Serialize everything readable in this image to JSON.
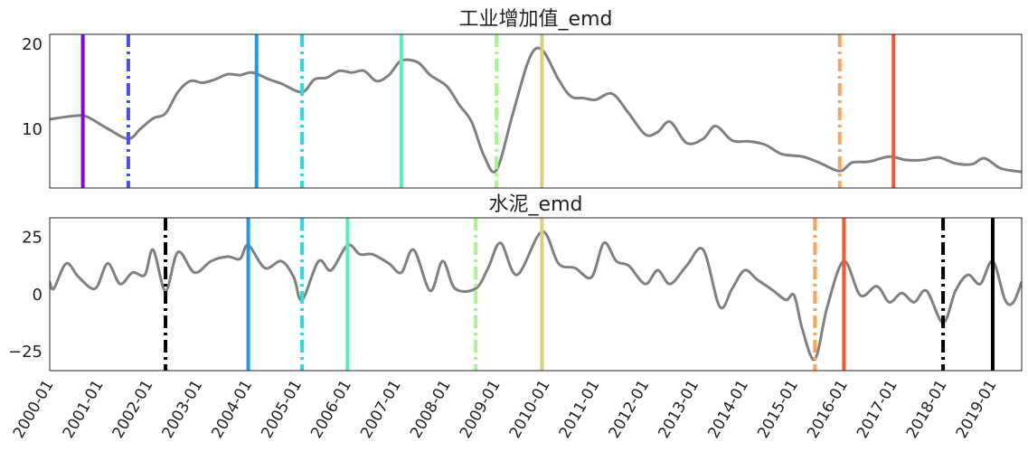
{
  "chart_data": [
    {
      "type": "line",
      "title": "工业增加值_emd",
      "color": "#808080",
      "x": [
        "2000-01",
        "2000-07",
        "2000-10",
        "2001-03",
        "2001-08",
        "2001-11",
        "2002-02",
        "2002-05",
        "2002-08",
        "2002-11",
        "2003-02",
        "2003-05",
        "2003-08",
        "2003-11",
        "2004-02",
        "2004-06",
        "2004-09",
        "2005-02",
        "2005-05",
        "2005-08",
        "2005-11",
        "2006-02",
        "2006-05",
        "2006-08",
        "2006-11",
        "2007-02",
        "2007-06",
        "2007-09",
        "2008-01",
        "2008-04",
        "2008-07",
        "2008-10",
        "2009-01",
        "2009-05",
        "2009-09",
        "2009-12",
        "2010-04",
        "2010-07",
        "2010-10",
        "2011-01",
        "2011-05",
        "2011-09",
        "2012-01",
        "2012-04",
        "2012-07",
        "2012-11",
        "2013-03",
        "2013-06",
        "2013-10",
        "2014-02",
        "2014-06",
        "2014-10",
        "2015-03",
        "2015-07",
        "2015-12",
        "2016-03",
        "2016-07",
        "2016-12",
        "2017-04",
        "2017-08",
        "2017-12",
        "2018-04",
        "2018-08",
        "2018-11",
        "2019-03",
        "2019-08"
      ],
      "values": [
        11.3,
        11.7,
        11.6,
        10.2,
        9.0,
        10.2,
        11.4,
        12.0,
        14.5,
        15.8,
        15.6,
        16.0,
        16.6,
        16.5,
        16.8,
        16.0,
        15.5,
        14.5,
        16.0,
        16.2,
        17.0,
        16.8,
        17.0,
        15.8,
        16.5,
        18.2,
        18.0,
        16.5,
        15.2,
        13.0,
        11.0,
        7.0,
        5.3,
        12.0,
        18.5,
        19.5,
        16.0,
        14.0,
        13.8,
        13.6,
        14.3,
        12.0,
        9.5,
        9.8,
        11.0,
        8.5,
        9.0,
        10.5,
        8.8,
        8.7,
        8.3,
        7.2,
        6.9,
        6.2,
        5.2,
        6.2,
        6.3,
        6.9,
        6.5,
        6.5,
        6.8,
        6.1,
        6.0,
        6.7,
        5.5,
        5.1
      ],
      "xlim": [
        "2000-01",
        "2019-08"
      ],
      "ylim": [
        3.2,
        21.3
      ],
      "yticks": [
        10,
        20
      ],
      "vlines": [
        {
          "x": "2000-09",
          "color": "#7f00ff",
          "style": "solid"
        },
        {
          "x": "2001-08",
          "color": "#4a4aff",
          "style": "dashdot"
        },
        {
          "x": "2004-03",
          "color": "#1e9be6",
          "style": "solid"
        },
        {
          "x": "2005-02",
          "color": "#2adcdc",
          "style": "dashdot"
        },
        {
          "x": "2007-02",
          "color": "#56f0b4",
          "style": "solid"
        },
        {
          "x": "2009-01",
          "color": "#a6f58e",
          "style": "dashdot"
        },
        {
          "x": "2009-12",
          "color": "#d4d27c",
          "style": "solid"
        },
        {
          "x": "2015-12",
          "color": "#ffa25a",
          "style": "dashdot"
        },
        {
          "x": "2017-01",
          "color": "#ff5630",
          "style": "solid"
        }
      ]
    },
    {
      "type": "line",
      "title": "水泥_emd",
      "color": "#808080",
      "x": [
        "2000-01",
        "2000-02",
        "2000-05",
        "2000-08",
        "2000-12",
        "2001-03",
        "2001-06",
        "2001-09",
        "2001-12",
        "2002-02",
        "2002-05",
        "2002-08",
        "2002-12",
        "2003-04",
        "2003-08",
        "2003-11",
        "2004-01",
        "2004-05",
        "2004-09",
        "2004-12",
        "2005-02",
        "2005-06",
        "2005-09",
        "2006-01",
        "2006-04",
        "2006-07",
        "2006-11",
        "2007-02",
        "2007-05",
        "2007-09",
        "2007-12",
        "2008-03",
        "2008-08",
        "2008-11",
        "2009-02",
        "2009-06",
        "2009-12",
        "2010-04",
        "2010-08",
        "2010-12",
        "2011-03",
        "2011-06",
        "2011-09",
        "2012-01",
        "2012-04",
        "2012-07",
        "2012-11",
        "2013-03",
        "2013-07",
        "2013-10",
        "2014-01",
        "2014-04",
        "2014-08",
        "2014-11",
        "2015-01",
        "2015-03",
        "2015-06",
        "2015-09",
        "2016-01",
        "2016-05",
        "2016-09",
        "2016-12",
        "2017-03",
        "2017-06",
        "2017-09",
        "2018-01",
        "2018-04",
        "2018-07",
        "2018-10",
        "2019-01",
        "2019-04",
        "2019-06",
        "2019-08"
      ],
      "values": [
        6,
        3,
        14,
        8,
        3,
        14,
        5,
        10,
        9,
        20,
        2,
        19,
        10,
        15,
        17,
        16,
        22,
        12,
        15,
        8,
        -2,
        15,
        11,
        22,
        18,
        18,
        14,
        10,
        20,
        2,
        15,
        3,
        3,
        12,
        23,
        9,
        28,
        14,
        12,
        8,
        23,
        15,
        13,
        5,
        11,
        5,
        13,
        20,
        -5,
        3,
        11,
        7,
        2,
        -2,
        0,
        -15,
        -28,
        -5,
        15,
        0,
        4,
        -3,
        1,
        -3,
        2,
        -12,
        2,
        9,
        5,
        15,
        -2,
        -3,
        6
      ],
      "xlim": [
        "2000-01",
        "2019-08"
      ],
      "ylim": [
        -33,
        34
      ],
      "yticks": [
        {
          "value": -25,
          "label": "−25"
        },
        0,
        25
      ],
      "xticks": [
        "2000-01",
        "2001-01",
        "2002-01",
        "2003-01",
        "2004-01",
        "2005-01",
        "2006-01",
        "2007-01",
        "2008-01",
        "2009-01",
        "2010-01",
        "2011-01",
        "2012-01",
        "2013-01",
        "2014-01",
        "2015-01",
        "2016-01",
        "2017-01",
        "2018-01",
        "2019-01"
      ],
      "vlines": [
        {
          "x": "2002-05",
          "color": "#000000",
          "style": "dashdot"
        },
        {
          "x": "2004-01",
          "color": "#1e9be6",
          "style": "solid"
        },
        {
          "x": "2005-02",
          "color": "#2adcdc",
          "style": "dashdot"
        },
        {
          "x": "2006-01",
          "color": "#56f0b4",
          "style": "solid"
        },
        {
          "x": "2008-08",
          "color": "#a6f58e",
          "style": "dashdot"
        },
        {
          "x": "2009-12",
          "color": "#d4d27c",
          "style": "solid"
        },
        {
          "x": "2015-06",
          "color": "#ffa25a",
          "style": "dashdot"
        },
        {
          "x": "2016-01",
          "color": "#ff5630",
          "style": "solid"
        },
        {
          "x": "2018-01",
          "color": "#000000",
          "style": "dashdot"
        },
        {
          "x": "2019-01",
          "color": "#000000",
          "style": "solid"
        }
      ]
    }
  ]
}
